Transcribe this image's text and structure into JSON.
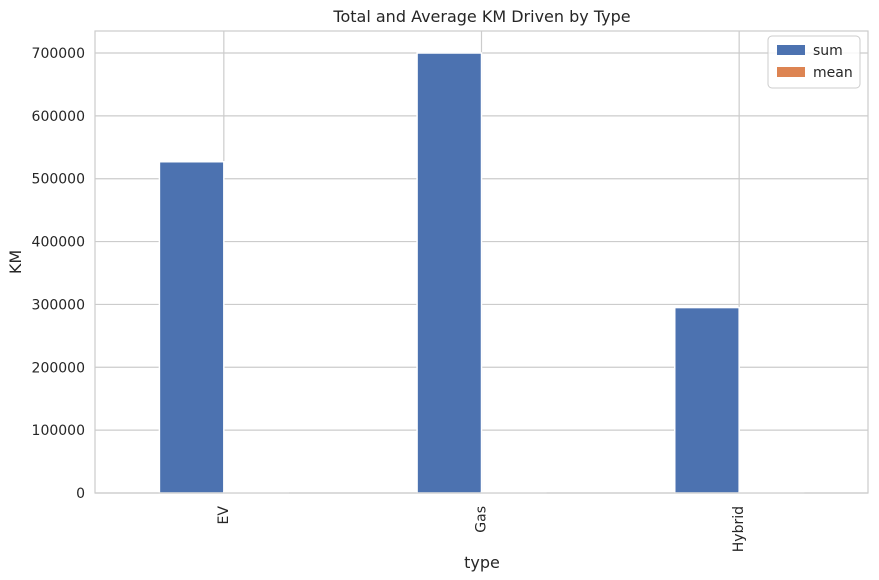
{
  "chart_data": {
    "type": "bar",
    "title": "Total and Average KM Driven by Type",
    "xlabel": "type",
    "ylabel": "KM",
    "categories": [
      "EV",
      "Gas",
      "Hybrid"
    ],
    "series": [
      {
        "name": "sum",
        "color": "#4c72b0",
        "values": [
          527000,
          700000,
          295000
        ]
      },
      {
        "name": "mean",
        "color": "#dd8452",
        "values": [
          1500,
          1500,
          1500
        ]
      }
    ],
    "ylim": [
      0,
      735000
    ],
    "yticks": [
      0,
      100000,
      200000,
      300000,
      400000,
      500000,
      600000,
      700000
    ],
    "ytick_labels": [
      "0",
      "100000",
      "200000",
      "300000",
      "400000",
      "500000",
      "600000",
      "700000"
    ],
    "grid": true,
    "legend_position": "top-right",
    "background": "#ffffff",
    "frame_color": "#cccccc"
  }
}
